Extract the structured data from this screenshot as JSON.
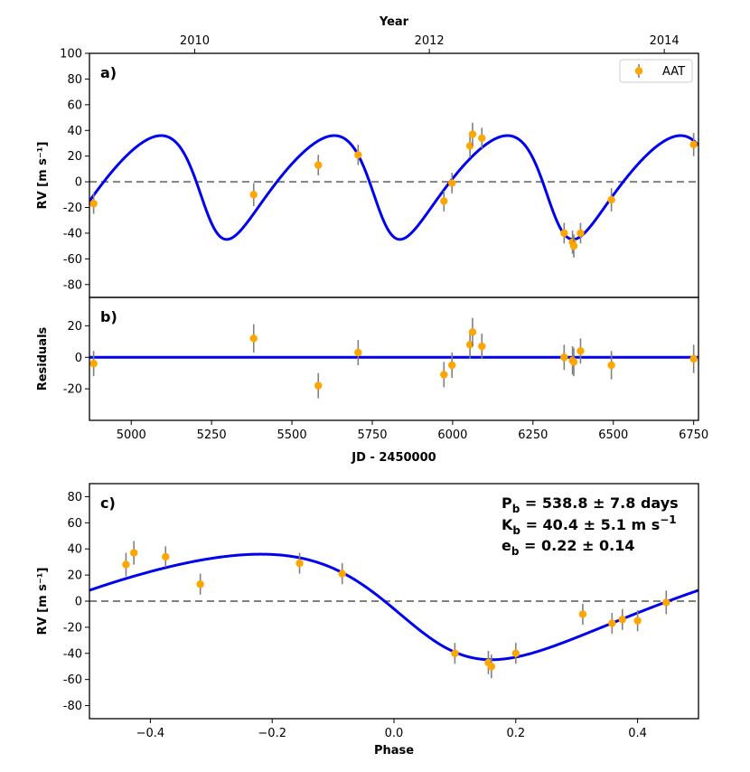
{
  "chart_data": [
    {
      "panel": "a",
      "type": "scatter",
      "label": "a)",
      "ylabel": "RV [m s⁻¹]",
      "top_xlabel": "Year",
      "ylim": [
        -90,
        100
      ],
      "xlim": [
        4870,
        6765
      ],
      "yticks": [
        -80,
        -60,
        -40,
        -20,
        0,
        20,
        40,
        60,
        80,
        100
      ],
      "top_xticks": [
        {
          "jd": 5197.5,
          "label": "2010"
        },
        {
          "jd": 5927.5,
          "label": "2012"
        },
        {
          "jd": 6658.5,
          "label": "2014"
        }
      ],
      "legend": {
        "label": "AAT",
        "position": "top-right"
      },
      "colors": {
        "data": "#ffa500",
        "errorbar": "#808080",
        "model": "#0000ee",
        "zero": "#808080"
      },
      "series": [
        {
          "name": "AAT",
          "points": [
            {
              "x": 4883,
              "y": -17,
              "err": 8
            },
            {
              "x": 5381,
              "y": -10,
              "err": 9
            },
            {
              "x": 5582,
              "y": 13,
              "err": 8
            },
            {
              "x": 5706,
              "y": 21,
              "err": 8
            },
            {
              "x": 5973,
              "y": -15,
              "err": 8
            },
            {
              "x": 5998,
              "y": -1,
              "err": 8
            },
            {
              "x": 6054,
              "y": 28,
              "err": 9
            },
            {
              "x": 6062,
              "y": 37,
              "err": 9
            },
            {
              "x": 6091,
              "y": 34,
              "err": 8
            },
            {
              "x": 6347,
              "y": -40,
              "err": 8
            },
            {
              "x": 6373,
              "y": -47,
              "err": 9
            },
            {
              "x": 6377,
              "y": -50,
              "err": 9
            },
            {
              "x": 6398,
              "y": -40,
              "err": 8
            },
            {
              "x": 6494,
              "y": -14,
              "err": 9
            },
            {
              "x": 6750,
              "y": 29,
              "err": 9
            }
          ]
        },
        {
          "name": "Keplerian model",
          "type": "line",
          "model": {
            "P": 538.8,
            "K": 40.4,
            "e": 0.22,
            "omega_deg": 120,
            "t_min": 5297
          }
        }
      ]
    },
    {
      "panel": "b",
      "type": "scatter",
      "label": "b)",
      "ylabel": "Residuals",
      "xlabel": "JD - 2450000",
      "xlim": [
        4870,
        6765
      ],
      "ylim": [
        -40,
        38
      ],
      "yticks": [
        -20,
        0,
        20
      ],
      "xticks": [
        5000,
        5250,
        5500,
        5750,
        6000,
        6250,
        6500,
        6750
      ],
      "series": [
        {
          "name": "Residuals",
          "points": [
            {
              "x": 4883,
              "y": -4,
              "err": 8
            },
            {
              "x": 5381,
              "y": 12,
              "err": 9
            },
            {
              "x": 5582,
              "y": -18,
              "err": 8
            },
            {
              "x": 5706,
              "y": 3,
              "err": 8
            },
            {
              "x": 5973,
              "y": -11,
              "err": 8
            },
            {
              "x": 5998,
              "y": -5,
              "err": 8
            },
            {
              "x": 6054,
              "y": 8,
              "err": 9
            },
            {
              "x": 6062,
              "y": 16,
              "err": 9
            },
            {
              "x": 6091,
              "y": 7,
              "err": 8
            },
            {
              "x": 6347,
              "y": 0,
              "err": 8
            },
            {
              "x": 6373,
              "y": -2,
              "err": 9
            },
            {
              "x": 6377,
              "y": -3,
              "err": 9
            },
            {
              "x": 6398,
              "y": 4,
              "err": 8
            },
            {
              "x": 6494,
              "y": -5,
              "err": 9
            },
            {
              "x": 6750,
              "y": -1,
              "err": 9
            }
          ]
        }
      ]
    },
    {
      "panel": "c",
      "type": "scatter",
      "label": "c)",
      "ylabel": "RV [m s⁻¹]",
      "xlabel": "Phase",
      "xlim": [
        -0.5,
        0.5
      ],
      "ylim": [
        -90,
        90
      ],
      "yticks": [
        -80,
        -60,
        -40,
        -20,
        0,
        20,
        40,
        60,
        80
      ],
      "xticks": [
        {
          "v": -0.4,
          "label": "−0.4"
        },
        {
          "v": -0.2,
          "label": "−0.2"
        },
        {
          "v": 0.0,
          "label": "0.0"
        },
        {
          "v": 0.2,
          "label": "0.2"
        },
        {
          "v": 0.4,
          "label": "0.4"
        }
      ],
      "annotations": {
        "P": {
          "sym": "P",
          "sub": "b",
          "text": " = 538.8 ± 7.8 days"
        },
        "K": {
          "sym": "K",
          "sub": "b",
          "text": " = 40.4 ± 5.1 m s",
          "sup": "−1"
        },
        "e": {
          "sym": "e",
          "sub": "b",
          "text": " = 0.22 ± 0.14"
        }
      },
      "series": [
        {
          "name": "AAT",
          "points": [
            {
              "x": -0.44,
              "y": 28,
              "err": 9
            },
            {
              "x": -0.427,
              "y": 37,
              "err": 9
            },
            {
              "x": -0.375,
              "y": 34,
              "err": 8
            },
            {
              "x": -0.318,
              "y": 13,
              "err": 8
            },
            {
              "x": -0.155,
              "y": 29,
              "err": 8
            },
            {
              "x": -0.085,
              "y": 21,
              "err": 8
            },
            {
              "x": 0.1,
              "y": -40,
              "err": 8
            },
            {
              "x": 0.155,
              "y": -47,
              "err": 9
            },
            {
              "x": 0.16,
              "y": -50,
              "err": 9
            },
            {
              "x": 0.2,
              "y": -40,
              "err": 8
            },
            {
              "x": 0.31,
              "y": -10,
              "err": 8
            },
            {
              "x": 0.358,
              "y": -17,
              "err": 8
            },
            {
              "x": 0.375,
              "y": -14,
              "err": 8
            },
            {
              "x": 0.4,
              "y": -15,
              "err": 8
            },
            {
              "x": 0.447,
              "y": -1,
              "err": 9
            }
          ]
        },
        {
          "name": "Keplerian model",
          "type": "line",
          "model": {
            "K": 40.4,
            "e": 0.22,
            "omega_deg": 120,
            "t_min_phase": 0.16
          }
        }
      ]
    }
  ]
}
